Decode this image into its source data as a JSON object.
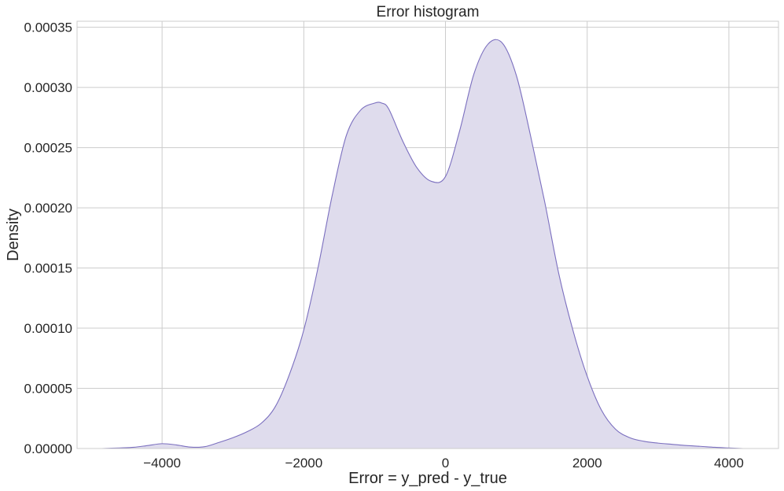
{
  "chart_data": {
    "type": "area",
    "title": "Error histogram",
    "xlabel": "Error = y_pred - y_true",
    "ylabel": "Density",
    "xlim": [
      -5200,
      4700
    ],
    "ylim": [
      0,
      0.000355
    ],
    "grid": true,
    "x_ticks": [
      -4000,
      -2000,
      0,
      2000,
      4000
    ],
    "x_tick_labels": [
      "−4000",
      "−2000",
      "0",
      "2000",
      "4000"
    ],
    "y_ticks": [
      0,
      5e-05,
      0.0001,
      0.00015,
      0.0002,
      0.00025,
      0.0003,
      0.00035
    ],
    "y_tick_labels": [
      "0.00000",
      "0.00005",
      "0.00010",
      "0.00015",
      "0.00020",
      "0.00025",
      "0.00030",
      "0.00035"
    ],
    "colors": {
      "line": "#7b6fbf",
      "fill": "#dfdced",
      "grid": "#cccccc",
      "frame": "#cccccc"
    },
    "series": [
      {
        "x": [
          -4850,
          -4600,
          -4400,
          -4200,
          -4000,
          -3800,
          -3600,
          -3400,
          -3200,
          -3000,
          -2800,
          -2600,
          -2400,
          -2200,
          -2000,
          -1800,
          -1600,
          -1400,
          -1200,
          -1000,
          -900,
          -800,
          -600,
          -400,
          -200,
          0,
          200,
          400,
          600,
          800,
          1000,
          1200,
          1400,
          1600,
          1800,
          2000,
          2200,
          2400,
          2600,
          2800,
          3000,
          3200,
          3400,
          3600,
          3800,
          4000,
          4200
        ],
        "y": [
          0.0,
          5e-07,
          1e-06,
          2.5e-06,
          4e-06,
          3e-06,
          1.2e-06,
          1.5e-06,
          5e-06,
          9e-06,
          1.4e-05,
          2.1e-05,
          3.5e-05,
          6.2e-05,
          9.85e-05,
          0.00015,
          0.00021,
          0.00026,
          0.000281,
          0.000287,
          0.000287,
          0.000282,
          0.000255,
          0.000233,
          0.000222,
          0.000226,
          0.000264,
          0.000311,
          0.000336,
          0.000337,
          0.00031,
          0.00026,
          0.000205,
          0.000145,
          9.8e-05,
          6e-05,
          3.2e-05,
          1.6e-05,
          9e-06,
          6e-06,
          4.5e-06,
          3.5e-06,
          2.5e-06,
          1.8e-06,
          1e-06,
          5e-07,
          0.0
        ]
      }
    ]
  }
}
